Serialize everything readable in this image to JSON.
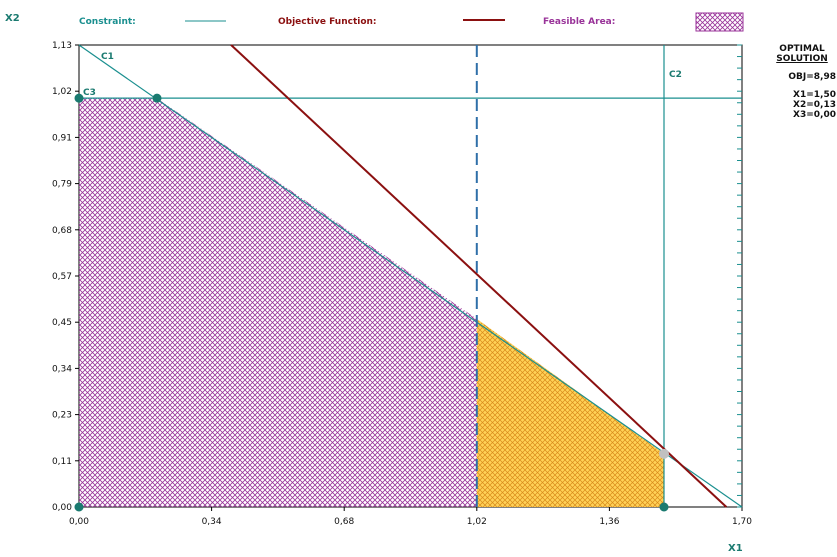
{
  "legend": {
    "constraint_label": "Constraint:",
    "objective_label": "Objective Function:",
    "feasible_label": "Feasible Area:"
  },
  "axes": {
    "xlabel": "X1",
    "ylabel": "X2"
  },
  "constraint_labels": [
    "C1",
    "C2",
    "C3"
  ],
  "solution": {
    "title_line1": "OPTIMAL",
    "title_line2": "SOLUTION",
    "obj": "OBJ=8,98",
    "x1": "X1=1,50",
    "x2": "X2=0,13",
    "x3": "X3=0,00"
  },
  "colors": {
    "constraint": "#1a8f8f",
    "objective": "#8b1010",
    "feasible": "#993399",
    "optimal_area": "#ffd257",
    "dashed": "#2f6fa8",
    "point": "#1a7a70",
    "optimal_point": "#c0c0c0"
  },
  "chart_data": {
    "type": "line",
    "xlim": [
      0,
      1.7
    ],
    "ylim": [
      0,
      1.13
    ],
    "x_ticks": [
      "0,00",
      "0,34",
      "0,68",
      "1,02",
      "1,36",
      "1,70"
    ],
    "y_ticks": [
      "0,00",
      "0,11",
      "0,23",
      "0,34",
      "0,45",
      "0,57",
      "0,68",
      "0,79",
      "0,91",
      "1,02",
      "1,13"
    ],
    "constraints": [
      {
        "name": "C1",
        "points": [
          [
            0,
            1.13
          ],
          [
            1.7,
            0
          ]
        ]
      },
      {
        "name": "C2",
        "x": 1.5
      },
      {
        "name": "C3",
        "y": 1.0
      }
    ],
    "objective_line": [
      [
        0.39,
        1.13
      ],
      [
        1.66,
        0
      ]
    ],
    "dashed_line_x": 1.02,
    "feasible_polygon": [
      [
        0,
        0
      ],
      [
        0,
        1.0
      ],
      [
        0.2,
        1.0
      ],
      [
        1.02,
        0.46
      ],
      [
        1.02,
        0
      ]
    ],
    "optimal_region_polygon": [
      [
        1.02,
        0
      ],
      [
        1.02,
        0.46
      ],
      [
        1.5,
        0.13
      ],
      [
        1.5,
        0
      ]
    ],
    "vertices": [
      [
        0,
        0
      ],
      [
        0,
        1.0
      ],
      [
        0.2,
        1.0
      ],
      [
        1.5,
        0
      ]
    ],
    "optimal_point": [
      1.5,
      0.13
    ]
  }
}
